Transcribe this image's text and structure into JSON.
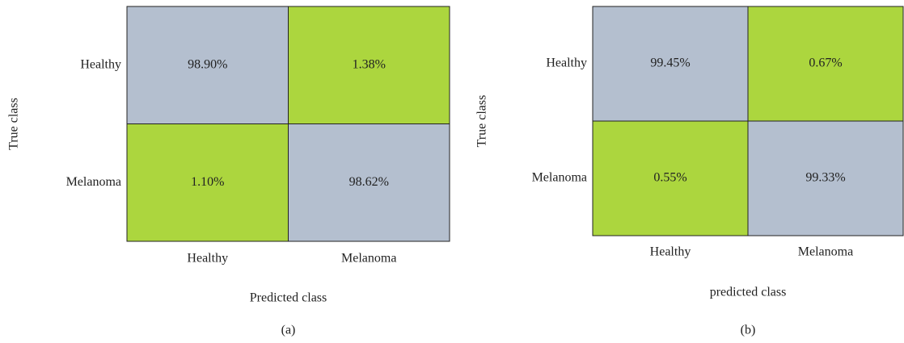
{
  "chart_data": [
    {
      "type": "heatmap",
      "x_label": "Predicted class",
      "y_label": "True class",
      "caption": "(a)",
      "x_categories": [
        "Healthy",
        "Melanoma"
      ],
      "y_categories": [
        "Healthy",
        "Melanoma"
      ],
      "values": [
        [
          98.9,
          1.38
        ],
        [
          1.1,
          98.62
        ]
      ],
      "value_labels": [
        [
          "98.90%",
          "1.38%"
        ],
        [
          "1.10%",
          "98.62%"
        ]
      ],
      "diagonal_color": "#b4bfcf",
      "off_diagonal_color": "#acd63e"
    },
    {
      "type": "heatmap",
      "x_label": "predicted class",
      "y_label": "True class",
      "caption": "(b)",
      "x_categories": [
        "Healthy",
        "Melanoma"
      ],
      "y_categories": [
        "Healthy",
        "Melanoma"
      ],
      "values": [
        [
          99.45,
          0.67
        ],
        [
          0.55,
          99.33
        ]
      ],
      "value_labels": [
        [
          "99.45%",
          "0.67%"
        ],
        [
          "0.55%",
          "99.33%"
        ]
      ],
      "diagonal_color": "#b4bfcf",
      "off_diagonal_color": "#acd63e"
    }
  ]
}
